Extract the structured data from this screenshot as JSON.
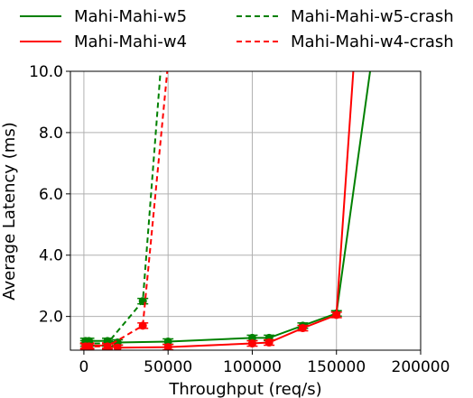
{
  "chart_data": {
    "type": "line",
    "xlabel": "Throughput (req/s)",
    "ylabel": "Average Latency (ms)",
    "xlim": [
      -8000,
      200000
    ],
    "ylim": [
      0.9,
      10.0
    ],
    "x_ticks": [
      0,
      50000,
      100000,
      150000,
      200000
    ],
    "x_tick_labels": [
      "0",
      "50000",
      "100000",
      "150000",
      "200000"
    ],
    "y_ticks": [
      2.0,
      4.0,
      6.0,
      8.0,
      10.0
    ],
    "y_tick_labels": [
      "2.0",
      "4.0",
      "6.0",
      "8.0",
      "10.0"
    ],
    "grid": true,
    "legend_position": "top",
    "series": [
      {
        "name": "Mahi-Mahi-w5",
        "color": "#008000",
        "dashed": false,
        "markers": [
          true,
          true,
          true,
          true,
          true,
          true,
          true,
          true,
          true,
          false
        ],
        "x": [
          1000,
          3000,
          14000,
          20000,
          50000,
          100000,
          110000,
          130000,
          150000,
          170000
        ],
        "y": [
          1.2,
          1.2,
          1.2,
          1.15,
          1.18,
          1.3,
          1.3,
          1.7,
          2.1,
          10.0
        ]
      },
      {
        "name": "Mahi-Mahi-w4",
        "color": "#ff0000",
        "dashed": false,
        "markers": [
          true,
          true,
          true,
          true,
          true,
          true,
          true,
          true,
          true,
          false
        ],
        "x": [
          1000,
          3000,
          14000,
          20000,
          50000,
          100000,
          110000,
          130000,
          150000,
          160000
        ],
        "y": [
          1.05,
          1.05,
          1.05,
          0.98,
          1.0,
          1.12,
          1.15,
          1.62,
          2.05,
          10.0
        ]
      },
      {
        "name": "Mahi-Mahi-w5-crash",
        "color": "#008000",
        "dashed": true,
        "markers": [
          true,
          true,
          true,
          true,
          false
        ],
        "x": [
          1000,
          3000,
          14000,
          35000,
          45500
        ],
        "y": [
          1.12,
          1.12,
          1.12,
          2.5,
          10.0
        ]
      },
      {
        "name": "Mahi-Mahi-w4-crash",
        "color": "#ff0000",
        "dashed": true,
        "markers": [
          true,
          true,
          true,
          true,
          false
        ],
        "x": [
          1000,
          3000,
          14000,
          35000,
          49500
        ],
        "y": [
          1.02,
          1.02,
          1.02,
          1.7,
          10.0
        ]
      }
    ]
  }
}
